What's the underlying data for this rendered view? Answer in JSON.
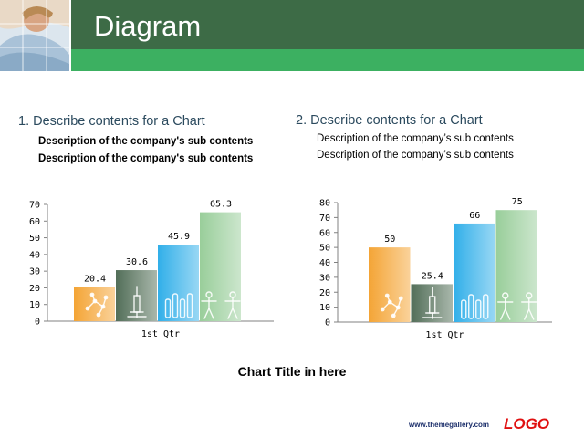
{
  "slide": {
    "title": "Diagram",
    "footer_title": "Chart Title in here",
    "url": "www.themegallery.com",
    "logo": "LOGO"
  },
  "colors": {
    "header_dark": "#3d6b46",
    "header_green": "#3cb061",
    "section_title": "#2b4a5e",
    "logo": "#e01010"
  },
  "sections": [
    {
      "heading": "1. Describe contents for a Chart",
      "lines": [
        "Description of the company's sub contents",
        "Description of the company's sub contents"
      ]
    },
    {
      "heading": "2. Describe contents for a Chart",
      "lines": [
        "Description of the company’s sub contents",
        "Description of the company’s sub contents"
      ]
    }
  ],
  "chart_data": [
    {
      "type": "bar",
      "categories": [
        "1st Qtr"
      ],
      "series": [
        {
          "values": [
            20.4
          ],
          "color": "#f39a1e",
          "icon": "molecule-icon"
        },
        {
          "values": [
            30.6
          ],
          "color": "#3f5e45",
          "icon": "syringe-icon"
        },
        {
          "values": [
            45.9
          ],
          "color": "#1aa6e6",
          "icon": "test-tubes-icon"
        },
        {
          "values": [
            65.3
          ],
          "color": "#8ec88f",
          "icon": "people-icon"
        }
      ],
      "ylim": [
        0,
        70
      ],
      "yticks": [
        0,
        10,
        20,
        30,
        40,
        50,
        60,
        70
      ],
      "data_labels": [
        "20.4",
        "30.6",
        "45.9",
        "65.3"
      ],
      "grid": false,
      "title": "",
      "xlabel": "",
      "ylabel": ""
    },
    {
      "type": "bar",
      "categories": [
        "1st Qtr"
      ],
      "series": [
        {
          "values": [
            50
          ],
          "color": "#f39a1e",
          "icon": "molecule-icon"
        },
        {
          "values": [
            25.4
          ],
          "color": "#3f5e45",
          "icon": "syringe-icon"
        },
        {
          "values": [
            66
          ],
          "color": "#1aa6e6",
          "icon": "test-tubes-icon"
        },
        {
          "values": [
            75
          ],
          "color": "#8ec88f",
          "icon": "people-icon"
        }
      ],
      "ylim": [
        0,
        80
      ],
      "yticks": [
        0,
        10,
        20,
        30,
        40,
        50,
        60,
        70,
        80
      ],
      "data_labels": [
        "50",
        "25.4",
        "66",
        "75"
      ],
      "grid": false,
      "title": "",
      "xlabel": "",
      "ylabel": ""
    }
  ]
}
